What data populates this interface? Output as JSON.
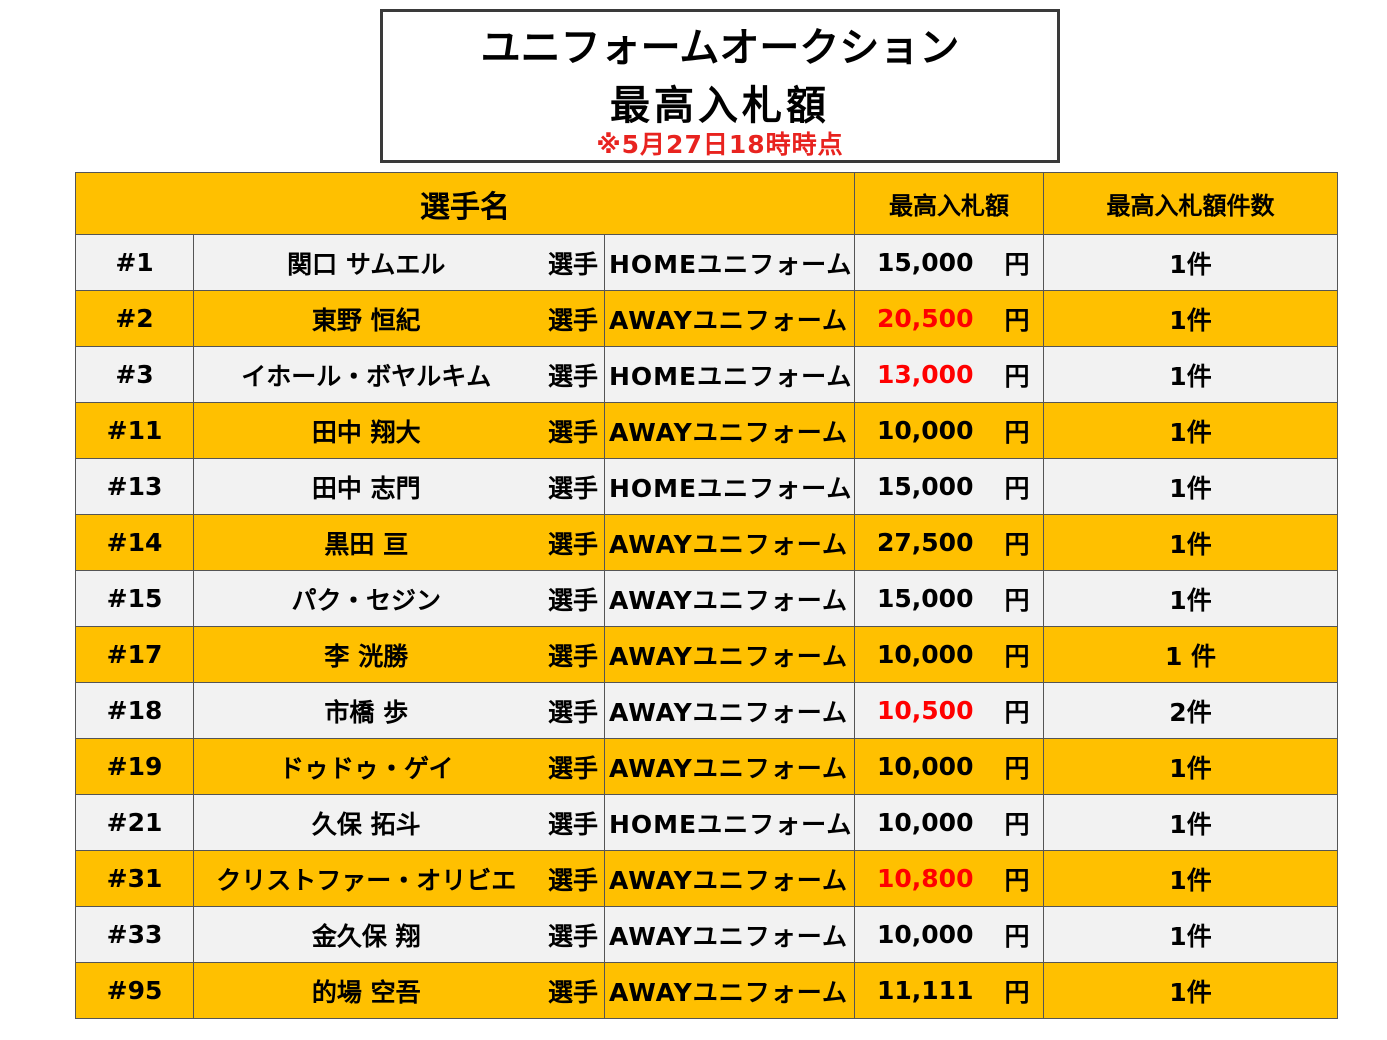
{
  "title": {
    "line1": "ユニフォームオークション",
    "line2": "最高入札額",
    "note": "※5月27日18時時点"
  },
  "table": {
    "headers": {
      "player": "選手名",
      "max_bid": "最高入札額",
      "bid_count": "最高入札額件数"
    },
    "rows": [
      {
        "number": "#1",
        "name": "関口 サムエル",
        "suffix": "選手",
        "uniform": "HOMEユニフォーム",
        "price": "15,000",
        "yen": "円",
        "count": "1件",
        "price_highlight": false
      },
      {
        "number": "#2",
        "name": "東野 恒紀",
        "suffix": "選手",
        "uniform": "AWAYユニフォーム",
        "price": "20,500",
        "yen": "円",
        "count": "1件",
        "price_highlight": true
      },
      {
        "number": "#3",
        "name": "イホール・ボヤルキム",
        "suffix": "選手",
        "uniform": "HOMEユニフォーム",
        "price": "13,000",
        "yen": "円",
        "count": "1件",
        "price_highlight": true
      },
      {
        "number": "#11",
        "name": "田中 翔大",
        "suffix": "選手",
        "uniform": "AWAYユニフォーム",
        "price": "10,000",
        "yen": "円",
        "count": "1件",
        "price_highlight": false
      },
      {
        "number": "#13",
        "name": "田中 志門",
        "suffix": "選手",
        "uniform": "HOMEユニフォーム",
        "price": "15,000",
        "yen": "円",
        "count": "1件",
        "price_highlight": false
      },
      {
        "number": "#14",
        "name": "黒田 亘",
        "suffix": "選手",
        "uniform": "AWAYユニフォーム",
        "price": "27,500",
        "yen": "円",
        "count": "1件",
        "price_highlight": false
      },
      {
        "number": "#15",
        "name": "パク・セジン",
        "suffix": "選手",
        "uniform": "AWAYユニフォーム",
        "price": "15,000",
        "yen": "円",
        "count": "1件",
        "price_highlight": false
      },
      {
        "number": "#17",
        "name": "李 洸勝",
        "suffix": "選手",
        "uniform": "AWAYユニフォーム",
        "price": "10,000",
        "yen": "円",
        "count": "1 件",
        "price_highlight": false
      },
      {
        "number": "#18",
        "name": "市橋 歩",
        "suffix": "選手",
        "uniform": "AWAYユニフォーム",
        "price": "10,500",
        "yen": "円",
        "count": "2件",
        "price_highlight": true
      },
      {
        "number": "#19",
        "name": "ドゥドゥ・ゲイ",
        "suffix": "選手",
        "uniform": "AWAYユニフォーム",
        "price": "10,000",
        "yen": "円",
        "count": "1件",
        "price_highlight": false
      },
      {
        "number": "#21",
        "name": "久保 拓斗",
        "suffix": "選手",
        "uniform": "HOMEユニフォーム",
        "price": "10,000",
        "yen": "円",
        "count": "1件",
        "price_highlight": false
      },
      {
        "number": "#31",
        "name": "クリストファー・オリビエ",
        "suffix": "選手",
        "uniform": "AWAYユニフォーム",
        "price": "10,800",
        "yen": "円",
        "count": "1件",
        "price_highlight": true
      },
      {
        "number": "#33",
        "name": "金久保 翔",
        "suffix": "選手",
        "uniform": "AWAYユニフォーム",
        "price": "10,000",
        "yen": "円",
        "count": "1件",
        "price_highlight": false
      },
      {
        "number": "#95",
        "name": "的場 空吾",
        "suffix": "選手",
        "uniform": "AWAYユニフォーム",
        "price": "11,111",
        "yen": "円",
        "count": "1件",
        "price_highlight": false
      }
    ]
  }
}
